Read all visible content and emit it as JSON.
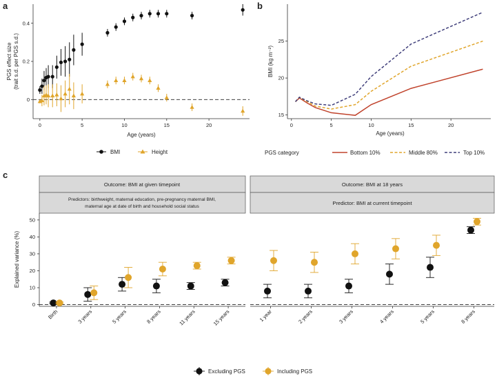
{
  "panel_labels": [
    "a",
    "b",
    "c"
  ],
  "chart_data": [
    {
      "panel": "a",
      "type": "scatter",
      "xlabel": "Age (years)",
      "ylabel_line1": "PGS effect size",
      "ylabel_line2": "(trait s.d. per PGS s.d.)",
      "xlim": [
        -0.8,
        24.8
      ],
      "ylim": [
        -0.1,
        0.5
      ],
      "xticks": [
        0,
        5,
        10,
        15,
        20
      ],
      "yticks": [
        0,
        0.2,
        0.4
      ],
      "ytick_labels": [
        "0",
        "0.2",
        "0.4"
      ],
      "reference_line": 0,
      "grid": false,
      "legend_position": "bottom",
      "series": [
        {
          "name": "BMI",
          "marker": "circle",
          "color": "#111111",
          "x": [
            0,
            0.25,
            0.5,
            0.75,
            1,
            1.5,
            2,
            2.5,
            3,
            3.5,
            4,
            5,
            8,
            9,
            10,
            11,
            12,
            13,
            14,
            15,
            18,
            24
          ],
          "y": [
            0.05,
            0.07,
            0.1,
            0.115,
            0.12,
            0.12,
            0.17,
            0.195,
            0.2,
            0.21,
            0.26,
            0.29,
            0.35,
            0.38,
            0.41,
            0.43,
            0.44,
            0.45,
            0.45,
            0.45,
            0.44,
            0.47
          ],
          "err": [
            0.02,
            0.04,
            0.05,
            0.05,
            0.06,
            0.06,
            0.06,
            0.07,
            0.08,
            0.09,
            0.08,
            0.06,
            0.02,
            0.02,
            0.02,
            0.02,
            0.02,
            0.02,
            0.02,
            0.02,
            0.02,
            0.03
          ]
        },
        {
          "name": "Height",
          "marker": "triangle",
          "color": "#E0A52B",
          "x": [
            0,
            0.25,
            0.5,
            0.75,
            1,
            1.5,
            2,
            2.5,
            3,
            3.5,
            4,
            5,
            8,
            9,
            10,
            11,
            12,
            13,
            14,
            15,
            18,
            24
          ],
          "y": [
            -0.01,
            -0.005,
            0.02,
            0.025,
            0.02,
            0.02,
            0.025,
            0.005,
            0.03,
            0.055,
            0.02,
            0.03,
            0.08,
            0.1,
            0.1,
            0.12,
            0.11,
            0.1,
            0.06,
            0.01,
            -0.04,
            -0.06
          ],
          "err": [
            0.01,
            0.03,
            0.05,
            0.05,
            0.06,
            0.06,
            0.06,
            0.07,
            0.07,
            0.08,
            0.07,
            0.05,
            0.02,
            0.02,
            0.02,
            0.02,
            0.02,
            0.02,
            0.02,
            0.02,
            0.02,
            0.025
          ]
        }
      ]
    },
    {
      "panel": "b",
      "type": "line",
      "xlabel": "Age (years)",
      "ylabel": "BMI (kg m⁻²)",
      "xlim": [
        -0.5,
        25
      ],
      "ylim": [
        14.5,
        30
      ],
      "xticks": [
        0,
        5,
        10,
        15,
        20
      ],
      "yticks": [
        15,
        20,
        25
      ],
      "grid": false,
      "legend_title": "PGS category",
      "legend_position": "bottom",
      "series": [
        {
          "name": "Bottom 10%",
          "color": "#C0422B",
          "dash": "solid",
          "x": [
            0.5,
            1,
            2,
            3,
            5,
            8,
            10,
            15,
            24
          ],
          "y": [
            16.8,
            17.3,
            16.6,
            16.0,
            15.3,
            14.95,
            16.4,
            18.6,
            21.2
          ]
        },
        {
          "name": "Middle 80%",
          "color": "#E0A52B",
          "dash": "dashed",
          "x": [
            0.5,
            1,
            2,
            3,
            5,
            8,
            10,
            15,
            24
          ],
          "y": [
            16.8,
            17.4,
            16.8,
            16.2,
            15.8,
            16.4,
            18.2,
            21.6,
            25.0
          ]
        },
        {
          "name": "Top 10%",
          "color": "#3F3E7A",
          "dash": "dashed",
          "x": [
            0.5,
            1,
            2,
            3,
            5,
            8,
            10,
            15,
            24
          ],
          "y": [
            16.8,
            17.4,
            16.9,
            16.5,
            16.3,
            17.8,
            20.2,
            24.6,
            28.9
          ]
        }
      ]
    },
    {
      "panel": "c",
      "type": "scatter",
      "ylabel": "Explained variance (%)",
      "ylim": [
        -1,
        54
      ],
      "yticks": [
        0,
        10,
        20,
        30,
        40,
        50
      ],
      "reference_line": 0,
      "legend_position": "bottom",
      "legend": [
        "Excluding PGS",
        "Including PGS"
      ],
      "colors": {
        "excluding": "#111111",
        "including": "#E0A52B"
      },
      "facets": [
        {
          "outcome": "Outcome: BMI at given timepoint",
          "predictor": "Predictors: birthweight, maternal education, pre-pregnancy maternal BMI,",
          "predictor_line2": "maternal age at date of birth and household social status",
          "categories": [
            "Birth",
            "3 years",
            "5 years",
            "8 years",
            "11 years",
            "15 years"
          ],
          "series": [
            {
              "name": "Excluding PGS",
              "values": [
                1,
                6,
                12,
                11,
                11,
                13
              ],
              "err": [
                0.5,
                4,
                4,
                4,
                2,
                2
              ]
            },
            {
              "name": "Including PGS",
              "values": [
                1,
                7,
                16,
                21,
                23,
                26
              ],
              "err": [
                0.5,
                4,
                6,
                4,
                2,
                2
              ]
            }
          ]
        },
        {
          "outcome": "Outcome: BMI at 18 years",
          "predictor": "Predictor: BMI at current timepoint",
          "predictor_line2": "",
          "categories": [
            "1 year",
            "2 years",
            "3 years",
            "4 years",
            "5 years",
            "8 years"
          ],
          "series": [
            {
              "name": "Excluding PGS",
              "values": [
                8,
                8,
                11,
                18,
                22,
                44
              ],
              "err": [
                4,
                4,
                4,
                6,
                6,
                2
              ]
            },
            {
              "name": "Including PGS",
              "values": [
                26,
                25,
                30,
                33,
                35,
                49
              ],
              "err": [
                6,
                6,
                6,
                6,
                6,
                2
              ]
            }
          ]
        }
      ]
    }
  ]
}
